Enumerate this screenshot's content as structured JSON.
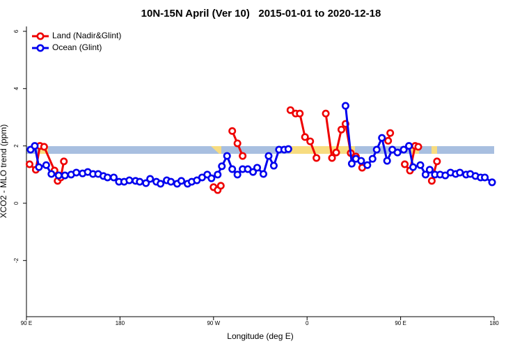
{
  "chart_data": {
    "type": "line",
    "title": "10N-15N April (Ver 10)   2015-01-01 to 2020-12-18",
    "xlabel": "Longitude (deg E)",
    "ylabel": "XCO2 - MLO trend (ppm)",
    "xlim": [
      90,
      540
    ],
    "ylim": [
      -3.96,
      6.17
    ],
    "xticks": [
      {
        "value": 90,
        "label": "90 E"
      },
      180,
      {
        "value": 270,
        "label": "90 W"
      },
      {
        "value": 360,
        "label": "0"
      },
      {
        "value": 450,
        "label": "90 E"
      },
      {
        "value": 540,
        "label": "180"
      }
    ],
    "yticks": [
      -2,
      0,
      2,
      4,
      6
    ],
    "legend": "top-left",
    "series": [
      {
        "name": "Land (Nadir&Glint)",
        "color": "#ee0000",
        "x": [
          93,
          99,
          103,
          107,
          117,
          120,
          123,
          126,
          null,
          270,
          274,
          277,
          null,
          288,
          293,
          298,
          null,
          344,
          349,
          353,
          358,
          363,
          369,
          null,
          378,
          384,
          388,
          393,
          397,
          402,
          407,
          413,
          null,
          438,
          440,
          null,
          454,
          459,
          464,
          467,
          null,
          480,
          485
        ],
        "values": [
          1.36,
          1.17,
          2.0,
          1.97,
          1.14,
          0.78,
          0.9,
          1.46,
          null,
          0.56,
          0.46,
          0.61,
          null,
          2.52,
          2.09,
          1.65,
          null,
          3.25,
          3.13,
          3.13,
          2.31,
          2.16,
          1.58,
          null,
          3.13,
          1.58,
          1.77,
          2.57,
          2.77,
          1.75,
          1.63,
          1.24,
          null,
          2.18,
          2.45,
          null,
          1.36,
          1.14,
          2.0,
          1.97,
          null,
          0.78,
          1.46
        ]
      },
      {
        "name": "Ocean (Glint)",
        "color": "#0000ee",
        "x": [
          94,
          98,
          102,
          109,
          114,
          121,
          127,
          133,
          138,
          144,
          149,
          154,
          159,
          164,
          168,
          174,
          179,
          184,
          189,
          195,
          199,
          205,
          209,
          215,
          219,
          225,
          229,
          235,
          239,
          245,
          249,
          254,
          259,
          264,
          268,
          274,
          278,
          283,
          288,
          293,
          298,
          303,
          308,
          312,
          318,
          323,
          328,
          333,
          338,
          342,
          null,
          397,
          403,
          407,
          412,
          418,
          423,
          427,
          432,
          437,
          442,
          447,
          453,
          458,
          462,
          469,
          474,
          478,
          483,
          488,
          493,
          498,
          503,
          507,
          513,
          517,
          522,
          527,
          531,
          538
        ],
        "values": [
          1.87,
          2.0,
          1.26,
          1.33,
          1.02,
          0.97,
          0.97,
          1.0,
          1.07,
          1.04,
          1.09,
          1.02,
          1.02,
          0.95,
          0.9,
          0.9,
          0.75,
          0.75,
          0.8,
          0.78,
          0.75,
          0.7,
          0.85,
          0.75,
          0.68,
          0.8,
          0.75,
          0.68,
          0.78,
          0.68,
          0.75,
          0.8,
          0.9,
          1.0,
          0.87,
          1.0,
          1.29,
          1.65,
          1.19,
          1.0,
          1.19,
          1.19,
          1.09,
          1.24,
          1.02,
          1.65,
          1.31,
          1.87,
          1.87,
          1.89,
          null,
          3.4,
          1.38,
          1.55,
          1.48,
          1.33,
          1.55,
          1.87,
          2.28,
          1.48,
          1.87,
          1.77,
          1.87,
          2.0,
          1.26,
          1.33,
          1.0,
          1.17,
          1.0,
          1.0,
          0.97,
          1.07,
          1.02,
          1.07,
          1.0,
          1.02,
          0.95,
          0.9,
          0.9,
          0.73
        ]
      }
    ]
  }
}
